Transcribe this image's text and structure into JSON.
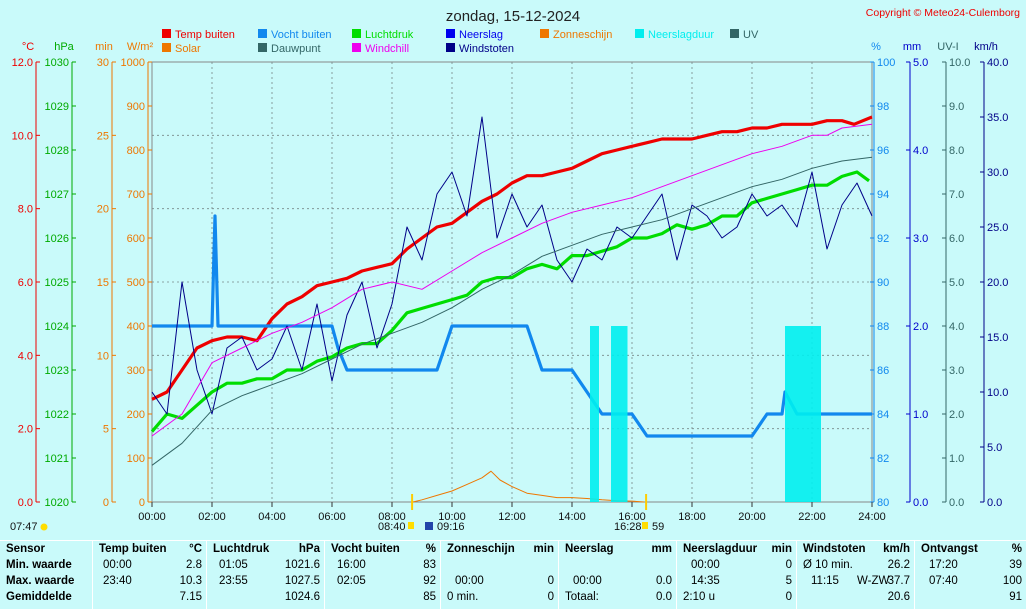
{
  "title": "zondag, 15-12-2024",
  "copyright": "Copyright © Meteo24-Culemborg",
  "legend": [
    {
      "name": "Temp buiten",
      "color": "#ee0000"
    },
    {
      "name": "Vocht buiten",
      "color": "#1188ee"
    },
    {
      "name": "Luchtdruk",
      "color": "#00dd00"
    },
    {
      "name": "Neerslag",
      "color": "#0000ee"
    },
    {
      "name": "Zonneschijn",
      "color": "#ee7700"
    },
    {
      "name": "Neerslagduur",
      "color": "#00eeee"
    },
    {
      "name": "UV",
      "color": "#336666"
    },
    {
      "name": "Solar",
      "color": "#ee7700"
    },
    {
      "name": "Dauwpunt",
      "color": "#336666"
    },
    {
      "name": "Windchill",
      "color": "#ee00ee"
    },
    {
      "name": "Windstoten",
      "color": "#000088"
    }
  ],
  "left_axes": [
    {
      "unit": "°C",
      "color": "#ee0000",
      "ticks": [
        "0.0",
        "2.0",
        "4.0",
        "6.0",
        "8.0",
        "10.0",
        "12.0"
      ]
    },
    {
      "unit": "hPa",
      "color": "#00aa00",
      "ticks": [
        "1020",
        "1021",
        "1022",
        "1023",
        "1024",
        "1025",
        "1026",
        "1027",
        "1028",
        "1029",
        "1030"
      ]
    },
    {
      "unit": "min",
      "color": "#ee7700",
      "ticks": [
        "0",
        "5",
        "10",
        "15",
        "20",
        "25",
        "30"
      ]
    },
    {
      "unit": "W/m²",
      "color": "#ee7700",
      "ticks": [
        "0",
        "100",
        "200",
        "300",
        "400",
        "500",
        "600",
        "700",
        "800",
        "900",
        "1000"
      ]
    }
  ],
  "right_axes": [
    {
      "unit": "%",
      "color": "#1188ee",
      "ticks": [
        "80",
        "82",
        "84",
        "86",
        "88",
        "90",
        "92",
        "94",
        "96",
        "98",
        "100"
      ]
    },
    {
      "unit": "mm",
      "color": "#0000cc",
      "ticks": [
        "0.0",
        "1.0",
        "2.0",
        "3.0",
        "4.0",
        "5.0"
      ]
    },
    {
      "unit": "UV-I",
      "color": "#336666",
      "ticks": [
        "0.0",
        "1.0",
        "2.0",
        "3.0",
        "4.0",
        "5.0",
        "6.0",
        "7.0",
        "8.0",
        "9.0",
        "10.0"
      ]
    },
    {
      "unit": "km/h",
      "color": "#000088",
      "ticks": [
        "0.0",
        "5.0",
        "10.0",
        "15.0",
        "20.0",
        "25.0",
        "30.0",
        "35.0",
        "40.0"
      ]
    }
  ],
  "x_ticks": [
    "00:00",
    "02:00",
    "04:00",
    "06:00",
    "08:00",
    "10:00",
    "12:00",
    "14:00",
    "16:00",
    "18:00",
    "20:00",
    "22:00",
    "24:00"
  ],
  "sun_markers": {
    "sunrise_astro": "07:47",
    "sunrise": "08:40",
    "solar_noon": "09:16",
    "sunset": "16:28",
    "sunset_extra": "59"
  },
  "colors": {
    "background": "#c9fafa",
    "plot": "#c9fafa",
    "grid": "#778888"
  },
  "chart_data": {
    "type": "line",
    "title": "zondag, 15-12-2024",
    "x_range": [
      "00:00",
      "24:00"
    ],
    "series": [
      {
        "name": "Temp buiten",
        "unit": "°C",
        "color": "#ee0000",
        "x": [
          0,
          0.5,
          1,
          1.5,
          2,
          2.5,
          3,
          3.5,
          4,
          4.5,
          5,
          5.5,
          6,
          6.5,
          7,
          7.5,
          8,
          8.5,
          9,
          9.5,
          10,
          10.5,
          11,
          11.5,
          12,
          12.5,
          13,
          13.5,
          14,
          14.5,
          15,
          15.5,
          16,
          16.5,
          17,
          17.5,
          18,
          18.5,
          19,
          19.5,
          20,
          20.5,
          21,
          21.5,
          22,
          22.5,
          23,
          23.4,
          24
        ],
        "values": [
          2.8,
          3.0,
          3.6,
          4.2,
          4.4,
          4.5,
          4.5,
          4.4,
          5.0,
          5.4,
          5.6,
          5.9,
          6.0,
          6.1,
          6.3,
          6.4,
          6.5,
          6.9,
          7.2,
          7.5,
          7.6,
          7.9,
          8.2,
          8.4,
          8.7,
          8.9,
          8.9,
          9.0,
          9.1,
          9.3,
          9.5,
          9.6,
          9.7,
          9.8,
          9.9,
          9.9,
          9.9,
          10.0,
          10.1,
          10.1,
          10.2,
          10.2,
          10.3,
          10.3,
          10.3,
          10.4,
          10.4,
          10.3,
          10.5
        ]
      },
      {
        "name": "Vocht buiten",
        "unit": "%",
        "color": "#1188ee",
        "x": [
          0,
          0.5,
          1,
          1.5,
          2,
          2.1,
          2.2,
          2.5,
          3,
          3.5,
          4,
          4.5,
          5,
          5.5,
          6,
          6.2,
          6.5,
          7,
          7.5,
          8,
          8.5,
          9,
          9.5,
          10,
          10.5,
          11,
          11.5,
          12,
          12.5,
          13,
          13.5,
          14,
          14.5,
          15,
          15.5,
          16,
          16.5,
          17,
          17.5,
          18,
          18.5,
          19,
          19.5,
          20,
          20.5,
          21,
          21.1,
          21.5,
          22,
          22.5,
          23,
          23.5,
          24
        ],
        "values": [
          88,
          88,
          88,
          88,
          88,
          93,
          88,
          88,
          88,
          88,
          88,
          88,
          88,
          88,
          88,
          87,
          86,
          86,
          86,
          86,
          86,
          86,
          86,
          88,
          88,
          88,
          88,
          88,
          88,
          86,
          86,
          86,
          85,
          84,
          84,
          84,
          83,
          83,
          83,
          83,
          83,
          83,
          83,
          83,
          84,
          84,
          85,
          84,
          84,
          84,
          84,
          84,
          84
        ]
      },
      {
        "name": "Luchtdruk",
        "unit": "hPa",
        "color": "#00dd00",
        "x": [
          0,
          0.5,
          1,
          1.5,
          2,
          2.5,
          3,
          3.5,
          4,
          4.5,
          5,
          5.5,
          6,
          6.5,
          7,
          7.5,
          8,
          8.5,
          9,
          9.5,
          10,
          10.5,
          11,
          11.5,
          12,
          12.5,
          13,
          13.5,
          14,
          14.5,
          15,
          15.5,
          16,
          16.5,
          17,
          17.5,
          18,
          18.5,
          19,
          19.5,
          20,
          20.5,
          21,
          21.5,
          22,
          22.5,
          23,
          23.5,
          23.9
        ],
        "values": [
          1021.6,
          1022.0,
          1021.9,
          1022.2,
          1022.5,
          1022.7,
          1022.7,
          1022.8,
          1022.8,
          1023.0,
          1023.0,
          1023.2,
          1023.3,
          1023.5,
          1023.6,
          1023.6,
          1023.9,
          1024.3,
          1024.4,
          1024.5,
          1024.6,
          1024.7,
          1025.0,
          1025.1,
          1025.1,
          1025.3,
          1025.4,
          1025.3,
          1025.6,
          1025.6,
          1025.7,
          1025.8,
          1026.0,
          1026.0,
          1026.1,
          1026.3,
          1026.2,
          1026.3,
          1026.5,
          1026.5,
          1026.8,
          1026.9,
          1027.0,
          1027.1,
          1027.2,
          1027.2,
          1027.4,
          1027.5,
          1027.3
        ]
      },
      {
        "name": "Solar",
        "unit": "W/m²",
        "color": "#ee7700",
        "x": [
          8.7,
          9,
          9.5,
          10,
          10.5,
          11,
          11.3,
          11.6,
          12,
          12.5,
          13,
          13.5,
          14,
          14.5,
          15,
          15.5,
          16,
          16.4
        ],
        "values": [
          0,
          5,
          15,
          25,
          40,
          55,
          70,
          50,
          35,
          20,
          15,
          10,
          10,
          8,
          5,
          3,
          2,
          0
        ]
      },
      {
        "name": "Windstoten",
        "unit": "km/h",
        "color": "#000088",
        "x": [
          0,
          0.5,
          1,
          1.5,
          2,
          2.5,
          3,
          3.5,
          4,
          4.5,
          5,
          5.5,
          6,
          6.5,
          7,
          7.5,
          8,
          8.5,
          9,
          9.5,
          10,
          10.5,
          11,
          11.5,
          12,
          12.5,
          13,
          13.5,
          14,
          14.5,
          15,
          15.5,
          16,
          16.5,
          17,
          17.5,
          18,
          18.5,
          19,
          19.5,
          20,
          20.5,
          21,
          21.5,
          22,
          22.5,
          23,
          23.5,
          24
        ],
        "values": [
          10,
          8,
          20,
          12,
          8,
          14,
          15,
          12,
          13,
          16,
          12,
          18,
          11,
          17,
          20,
          14,
          18,
          25,
          22,
          28,
          30,
          26,
          35,
          24,
          28,
          25,
          27,
          22,
          20,
          23,
          22,
          25,
          24,
          26,
          28,
          22,
          27,
          26,
          24,
          25,
          28,
          26,
          27,
          25,
          30,
          23,
          27,
          29,
          26
        ]
      },
      {
        "name": "Windchill",
        "unit": "°C",
        "color": "#ee00ee",
        "x": [
          0,
          1,
          2,
          3,
          4,
          5,
          6,
          7,
          8,
          9,
          10,
          11,
          12,
          13,
          14,
          15,
          16,
          17,
          18,
          19,
          20,
          21,
          22,
          22.5,
          23,
          24
        ],
        "values": [
          1.8,
          2.4,
          3.8,
          4.2,
          4.6,
          4.9,
          5.3,
          5.8,
          6.0,
          5.8,
          6.3,
          6.8,
          7.2,
          7.6,
          7.9,
          8.1,
          8.3,
          8.6,
          8.9,
          9.2,
          9.5,
          9.7,
          10.0,
          10.0,
          10.2,
          10.3
        ]
      },
      {
        "name": "Dauwpunt",
        "unit": "°C",
        "color": "#336666",
        "x": [
          0,
          1,
          2,
          3,
          4,
          5,
          6,
          7,
          8,
          9,
          10,
          11,
          12,
          13,
          14,
          15,
          16,
          17,
          18,
          19,
          20,
          21,
          22,
          23,
          24
        ],
        "values": [
          1.0,
          1.6,
          2.5,
          2.9,
          3.2,
          3.5,
          3.9,
          4.3,
          4.6,
          4.9,
          5.3,
          5.8,
          6.2,
          6.7,
          7.0,
          7.3,
          7.5,
          7.7,
          8.0,
          8.3,
          8.6,
          8.8,
          9.1,
          9.3,
          9.4
        ]
      },
      {
        "name": "Neerslagduur",
        "unit": "min",
        "color": "#00eeee",
        "x": [
          14.6,
          14.9,
          15.3,
          15.85,
          21.1,
          22.3
        ],
        "values": [
          12,
          12,
          12,
          12,
          12,
          12
        ]
      }
    ],
    "y_left_ranges": {
      "temp": [
        0,
        12
      ],
      "pressure": [
        1020,
        1030
      ],
      "min": [
        0,
        30
      ],
      "solar": [
        0,
        1000
      ]
    },
    "y_right_ranges": {
      "humidity": [
        80,
        100
      ],
      "rain": [
        0,
        5
      ],
      "uv": [
        0,
        10
      ],
      "wind": [
        0,
        40
      ]
    }
  },
  "summary": {
    "headers": {
      "sensor": "Sensor",
      "temp": "Temp buiten",
      "temp_unit": "°C",
      "press": "Luchtdruk",
      "press_unit": "hPa",
      "hum": "Vocht buiten",
      "hum_unit": "%",
      "sun": "Zonneschijn",
      "sun_unit": "min",
      "rain": "Neerslag",
      "rain_unit": "mm",
      "rdur": "Neerslagduur",
      "rdur_unit": "min",
      "wind": "Windstoten",
      "wind_unit": "km/h",
      "recv": "Ontvangst",
      "recv_unit": "%"
    },
    "rows": [
      {
        "label": "Min. waarde",
        "temp_t": "00:00",
        "temp_v": "2.8",
        "press_t": "01:05",
        "press_v": "1021.6",
        "hum_t": "16:00",
        "hum_v": "83",
        "sun_t": "",
        "sun_v": "",
        "rain_t": "",
        "rain_v": "",
        "rdur_t": "00:00",
        "rdur_v": "0",
        "wind_t": "Ø 10 min.",
        "wind_v": "26.2",
        "recv_t": "17:20",
        "recv_v": "39"
      },
      {
        "label": "Max. waarde",
        "temp_t": "23:40",
        "temp_v": "10.3",
        "press_t": "23:55",
        "press_v": "1027.5",
        "hum_t": "02:05",
        "hum_v": "92",
        "sun_t": "00:00",
        "sun_v": "0",
        "rain_t": "00:00",
        "rain_v": "0.0",
        "rdur_t": "14:35",
        "rdur_v": "5",
        "wind_t": "11:15",
        "wind_dir": "W-ZW",
        "wind_v": "37.7",
        "recv_t": "07:40",
        "recv_v": "100"
      },
      {
        "label": "Gemiddelde",
        "temp_t": "",
        "temp_v": "7.15",
        "press_t": "",
        "press_v": "1024.6",
        "hum_t": "",
        "hum_v": "85",
        "sun_t": "0 min.",
        "sun_v": "0",
        "rain_t": "Totaal:",
        "rain_v": "0.0",
        "rdur_t": "2:10 u",
        "rdur_v": "0",
        "wind_t": "",
        "wind_v": "20.6",
        "recv_t": "",
        "recv_v": "91"
      }
    ]
  }
}
